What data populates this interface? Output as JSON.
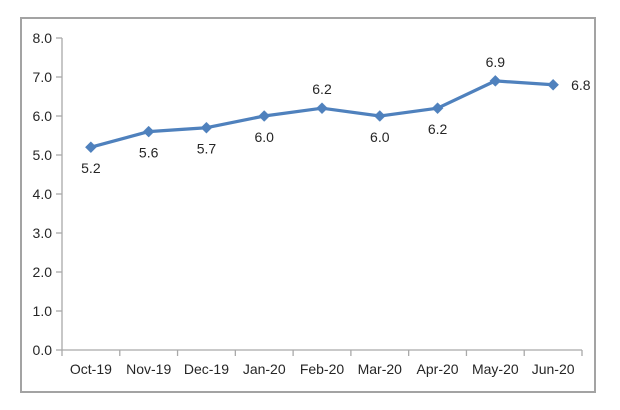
{
  "chart_data": {
    "type": "line",
    "title": "",
    "xlabel": "",
    "ylabel": "",
    "categories": [
      "Oct-19",
      "Nov-19",
      "Dec-19",
      "Jan-20",
      "Feb-20",
      "Mar-20",
      "Apr-20",
      "May-20",
      "Jun-20"
    ],
    "values": [
      5.2,
      5.6,
      5.7,
      6.0,
      6.2,
      6.0,
      6.2,
      6.9,
      6.8
    ],
    "data_labels": [
      "5.2",
      "5.6",
      "5.7",
      "6.0",
      "6.2",
      "6.0",
      "6.2",
      "6.9",
      "6.8"
    ],
    "data_label_positions": [
      "below",
      "below",
      "below",
      "below",
      "above",
      "below",
      "below",
      "above",
      "right"
    ],
    "ylim": [
      0,
      8
    ],
    "ytick_interval": 1.0,
    "ytick_labels": [
      "0.0",
      "1.0",
      "2.0",
      "3.0",
      "4.0",
      "5.0",
      "6.0",
      "7.0",
      "8.0"
    ],
    "grid": false,
    "legend": "none",
    "marker_shape": "diamond",
    "colors": {
      "series": "#4F81BD",
      "axis": "#A9A9A9",
      "text": "#262626",
      "chart_border": "#A3A3A3",
      "background": "#FFFFFF"
    }
  }
}
